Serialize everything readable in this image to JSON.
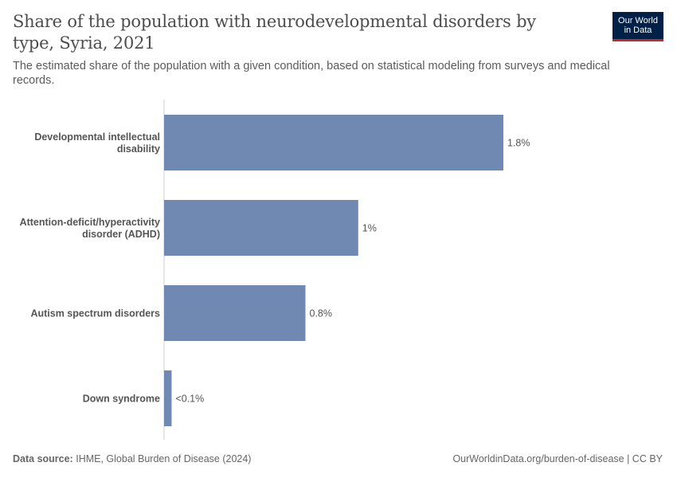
{
  "header": {
    "title": "Share of the population with neurodevelopmental disorders by type, Syria, 2021",
    "subtitle": "The estimated share of the population with a given condition, based on statistical modeling from surveys and medical records.",
    "logo_line1": "Our World",
    "logo_line2": "in Data"
  },
  "footer": {
    "source_label": "Data source:",
    "source_text": "IHME, Global Burden of Disease (2024)",
    "right_text": "OurWorldinData.org/burden-of-disease | CC BY"
  },
  "colors": {
    "bar": "#6f89b3",
    "axis": "#cccccc",
    "logo_bg": "#002147",
    "logo_accent": "#ce261e"
  },
  "chart_data": {
    "type": "bar",
    "orientation": "horizontal",
    "title": "Share of the population with neurodevelopmental disorders by type, Syria, 2021",
    "unit": "%",
    "categories": [
      [
        "Developmental intellectual",
        "disability"
      ],
      [
        "Attention-deficit/hyperactivity",
        "disorder (ADHD)"
      ],
      [
        "Autism spectrum disorders"
      ],
      [
        "Down syndrome"
      ]
    ],
    "values": [
      1.8,
      1.03,
      0.75,
      0.04
    ],
    "value_labels": [
      "1.8%",
      "1%",
      "0.8%",
      "<0.1%"
    ],
    "xlim": [
      0,
      1.8
    ],
    "grid": false
  }
}
